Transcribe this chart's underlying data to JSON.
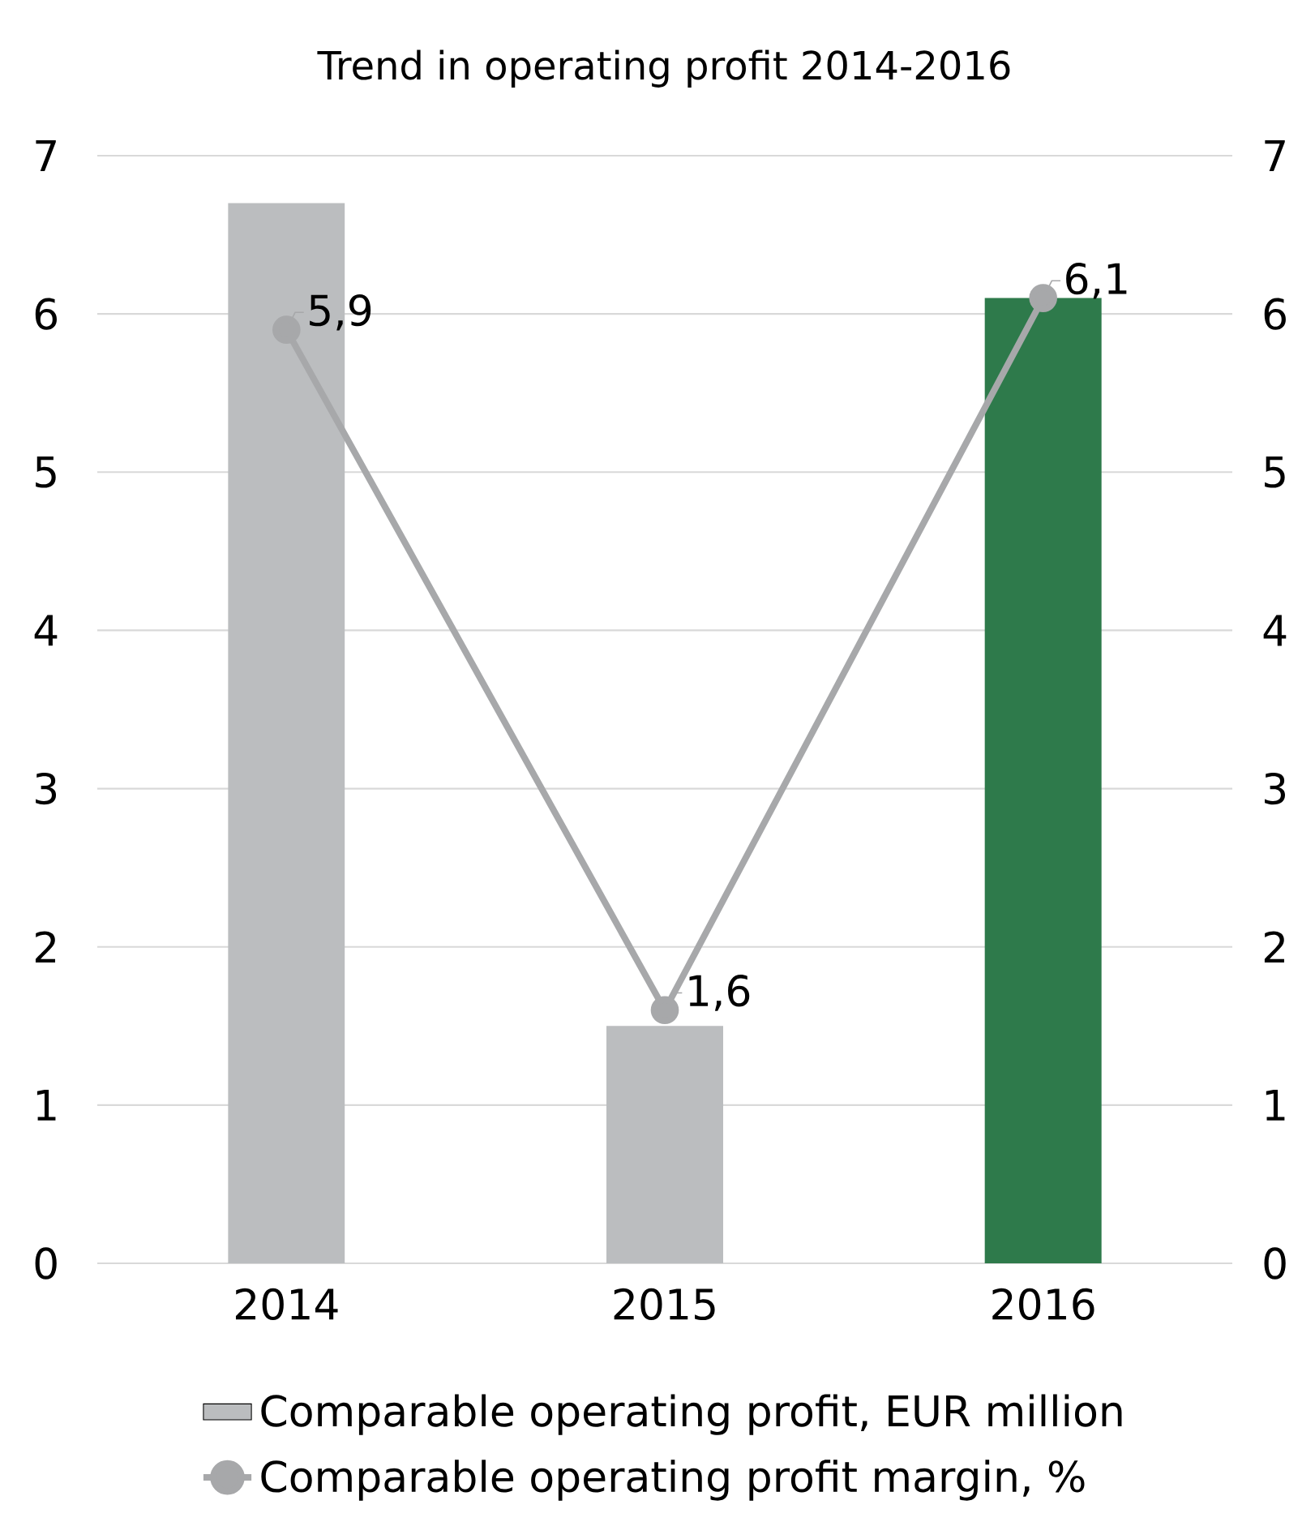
{
  "chart_data": {
    "type": "bar",
    "title": "Trend in operating profit 2014-2016",
    "categories": [
      "2014",
      "2015",
      "2016"
    ],
    "series": [
      {
        "name": "Comparable operating profit, EUR million",
        "color": "#bbbdbf",
        "colors": [
          "#bbbdbf",
          "#bbbdbf",
          "#2e7a4b"
        ],
        "values": [
          6.7,
          1.5,
          6.1
        ]
      },
      {
        "name": "Comparable operating profit margin, %",
        "type": "line",
        "axis": "y2",
        "color": "#a7a8aa",
        "values": [
          5.9,
          1.6,
          6.1
        ],
        "value_labels": [
          "5,9",
          "1,6",
          "6,1"
        ]
      }
    ],
    "ylim": [
      0,
      7
    ],
    "yticks": [
      0,
      1,
      2,
      3,
      4,
      5,
      6,
      7
    ],
    "y2lim": [
      0,
      7
    ],
    "y2ticks": [
      0,
      1,
      2,
      3,
      4,
      5,
      6,
      7
    ],
    "grid": "y",
    "legend": "bottom",
    "marker": "circle",
    "line_style": "solid"
  }
}
